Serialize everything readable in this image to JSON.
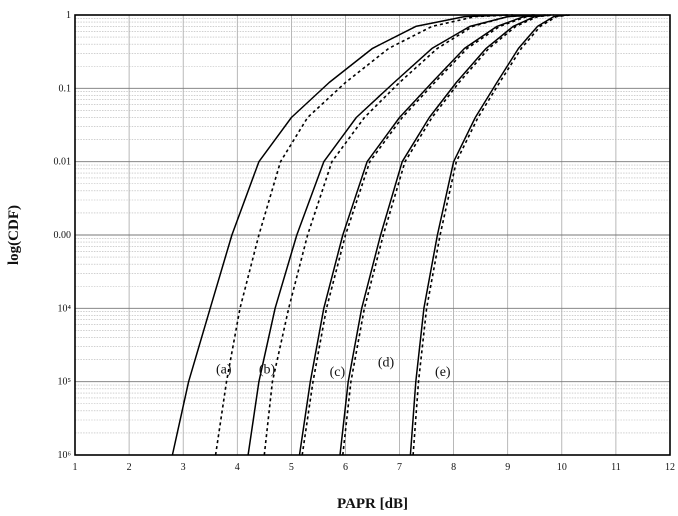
{
  "chart_data": {
    "type": "line",
    "title": "",
    "xlabel": "PAPR [dB]",
    "ylabel": "log(CDF)",
    "xlim": [
      1,
      12
    ],
    "ylim": [
      1e-06,
      1
    ],
    "yscale": "log",
    "grid": true,
    "x_ticks": [
      "1",
      "2",
      "3",
      "4",
      "5",
      "6",
      "7",
      "8",
      "9",
      "10",
      "11",
      "12"
    ],
    "y_ticks": [
      {
        "value": 1,
        "label": "1"
      },
      {
        "value": 0.1,
        "label": "0.1"
      },
      {
        "value": 0.01,
        "label": "0.01"
      },
      {
        "value": 0.001,
        "label": "0.00"
      },
      {
        "value": 0.0001,
        "label": "10⁴"
      },
      {
        "value": 1e-05,
        "label": "10⁵"
      },
      {
        "value": 1e-06,
        "label": "10⁶"
      }
    ],
    "series": [
      {
        "style": "solid",
        "x": [
          2.8,
          3.1,
          3.5,
          3.9,
          4.4,
          5.0,
          5.7,
          6.5,
          7.3,
          8.2,
          9.0
        ],
        "y": [
          1e-06,
          1e-05,
          0.0001,
          0.001,
          0.01,
          0.04,
          0.12,
          0.35,
          0.7,
          0.95,
          1
        ]
      },
      {
        "style": "dashed",
        "x": [
          3.6,
          3.8,
          4.05,
          4.4,
          4.8,
          5.3,
          6.0,
          6.8,
          7.6,
          8.4,
          9.1
        ],
        "y": [
          1e-06,
          1e-05,
          0.0001,
          0.001,
          0.01,
          0.04,
          0.12,
          0.35,
          0.7,
          0.95,
          1
        ]
      },
      {
        "style": "solid",
        "x": [
          4.2,
          4.4,
          4.7,
          5.1,
          5.6,
          6.2,
          6.9,
          7.6,
          8.3,
          9.0,
          9.5
        ],
        "y": [
          1e-06,
          1e-05,
          0.0001,
          0.001,
          0.01,
          0.04,
          0.12,
          0.35,
          0.7,
          0.95,
          1
        ]
      },
      {
        "style": "dashed",
        "x": [
          4.5,
          4.65,
          4.95,
          5.3,
          5.75,
          6.35,
          7.0,
          7.7,
          8.35,
          9.0,
          9.5
        ],
        "y": [
          1e-06,
          1e-05,
          0.0001,
          0.001,
          0.01,
          0.04,
          0.12,
          0.35,
          0.7,
          0.95,
          1
        ]
      },
      {
        "style": "solid",
        "x": [
          5.15,
          5.35,
          5.6,
          5.95,
          6.4,
          7.0,
          7.6,
          8.2,
          8.8,
          9.3,
          9.7
        ],
        "y": [
          1e-06,
          1e-05,
          0.0001,
          0.001,
          0.01,
          0.04,
          0.12,
          0.35,
          0.7,
          0.95,
          1
        ]
      },
      {
        "style": "dashed",
        "x": [
          5.2,
          5.4,
          5.65,
          6.0,
          6.45,
          7.05,
          7.65,
          8.25,
          8.85,
          9.35,
          9.75
        ],
        "y": [
          1e-06,
          1e-05,
          0.0001,
          0.001,
          0.01,
          0.04,
          0.12,
          0.35,
          0.7,
          0.95,
          1
        ]
      },
      {
        "style": "solid",
        "x": [
          5.9,
          6.05,
          6.3,
          6.65,
          7.05,
          7.55,
          8.05,
          8.6,
          9.1,
          9.5,
          9.8
        ],
        "y": [
          1e-06,
          1e-05,
          0.0001,
          0.001,
          0.01,
          0.04,
          0.12,
          0.35,
          0.7,
          0.95,
          1
        ]
      },
      {
        "style": "dashed",
        "x": [
          5.95,
          6.1,
          6.35,
          6.7,
          7.1,
          7.6,
          8.1,
          8.65,
          9.15,
          9.55,
          9.85
        ],
        "y": [
          1e-06,
          1e-05,
          0.0001,
          0.001,
          0.01,
          0.04,
          0.12,
          0.35,
          0.7,
          0.95,
          1
        ]
      },
      {
        "style": "solid",
        "x": [
          7.2,
          7.3,
          7.45,
          7.7,
          8.0,
          8.4,
          8.8,
          9.2,
          9.55,
          9.85,
          10.1
        ],
        "y": [
          1e-06,
          1e-05,
          0.0001,
          0.001,
          0.01,
          0.04,
          0.12,
          0.35,
          0.7,
          0.95,
          1
        ]
      },
      {
        "style": "dashed",
        "x": [
          7.25,
          7.35,
          7.5,
          7.75,
          8.05,
          8.45,
          8.85,
          9.25,
          9.6,
          9.9,
          10.15
        ],
        "y": [
          1e-06,
          1e-05,
          0.0001,
          0.001,
          0.01,
          0.04,
          0.12,
          0.35,
          0.7,
          0.95,
          1
        ]
      }
    ],
    "annotations": [
      {
        "text": "(a)",
        "x": 3.75,
        "y": 1.3e-05
      },
      {
        "text": "(b)",
        "x": 4.55,
        "y": 1.3e-05
      },
      {
        "text": "(c)",
        "x": 5.85,
        "y": 1.2e-05
      },
      {
        "text": "(d)",
        "x": 6.75,
        "y": 1.6e-05
      },
      {
        "text": "(e)",
        "x": 7.8,
        "y": 1.2e-05
      }
    ]
  }
}
